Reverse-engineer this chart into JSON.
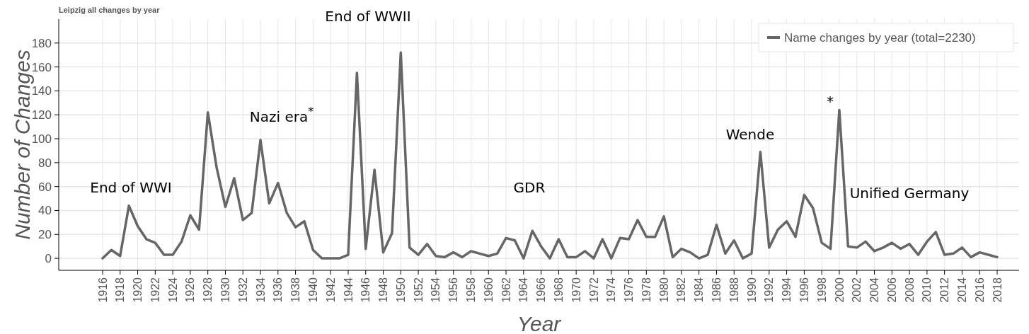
{
  "chart_data": {
    "type": "line",
    "title": "Leipzig all changes by year",
    "xlabel": "Year",
    "ylabel": "Number of Changes",
    "x": [
      1916,
      1917,
      1918,
      1919,
      1920,
      1921,
      1922,
      1923,
      1924,
      1925,
      1926,
      1927,
      1928,
      1929,
      1930,
      1931,
      1932,
      1933,
      1934,
      1935,
      1936,
      1937,
      1938,
      1939,
      1940,
      1941,
      1942,
      1943,
      1944,
      1945,
      1946,
      1947,
      1948,
      1949,
      1950,
      1951,
      1952,
      1953,
      1954,
      1955,
      1956,
      1957,
      1958,
      1959,
      1960,
      1961,
      1962,
      1963,
      1964,
      1965,
      1966,
      1967,
      1968,
      1969,
      1970,
      1971,
      1972,
      1973,
      1974,
      1975,
      1976,
      1977,
      1978,
      1979,
      1980,
      1981,
      1982,
      1983,
      1984,
      1985,
      1986,
      1987,
      1988,
      1989,
      1990,
      1991,
      1992,
      1993,
      1994,
      1995,
      1996,
      1997,
      1998,
      1999,
      2000,
      2001,
      2002,
      2003,
      2004,
      2005,
      2006,
      2007,
      2008,
      2009,
      2010,
      2011,
      2012,
      2013,
      2014,
      2015,
      2016,
      2017,
      2018
    ],
    "series": [
      {
        "name": "Name changes by year (total=2230)",
        "color": "#666666",
        "values": [
          0,
          7,
          2,
          44,
          27,
          16,
          13,
          3,
          3,
          14,
          36,
          24,
          122,
          76,
          43,
          67,
          32,
          38,
          99,
          46,
          63,
          38,
          26,
          31,
          7,
          0,
          0,
          0,
          3,
          155,
          8,
          74,
          5,
          21,
          172,
          9,
          3,
          12,
          2,
          1,
          5,
          1,
          6,
          4,
          2,
          4,
          17,
          15,
          0,
          23,
          10,
          0,
          16,
          1,
          1,
          6,
          0,
          16,
          0,
          17,
          16,
          32,
          18,
          18,
          35,
          1,
          8,
          5,
          0,
          3,
          28,
          4,
          15,
          0,
          4,
          89,
          9,
          24,
          31,
          18,
          53,
          42,
          13,
          8,
          124,
          10,
          9,
          14,
          6,
          9,
          13,
          8,
          12,
          3,
          14,
          22,
          3,
          4,
          9,
          1,
          5,
          3,
          1
        ]
      }
    ],
    "xlim": [
      1911,
      2020.5
    ],
    "ylim": [
      -10,
      200
    ],
    "xticks": [
      1916,
      1918,
      1920,
      1922,
      1924,
      1926,
      1928,
      1930,
      1932,
      1934,
      1936,
      1938,
      1940,
      1942,
      1944,
      1946,
      1948,
      1950,
      1952,
      1954,
      1956,
      1958,
      1960,
      1962,
      1964,
      1966,
      1968,
      1970,
      1972,
      1974,
      1976,
      1978,
      1980,
      1982,
      1984,
      1986,
      1988,
      1990,
      1992,
      1994,
      1996,
      1998,
      2000,
      2002,
      2004,
      2006,
      2008,
      2010,
      2012,
      2014,
      2016,
      2018
    ],
    "yticks": [
      0,
      20,
      40,
      60,
      80,
      100,
      120,
      140,
      160,
      180
    ],
    "grid": true,
    "legend": "top right",
    "marker": "none",
    "line_style": "solid",
    "annotations": [
      "End of WWI",
      "Nazi era$^{*}$",
      "End of WWII",
      "GDR",
      "Wende",
      "*",
      "Unified Germany"
    ]
  }
}
